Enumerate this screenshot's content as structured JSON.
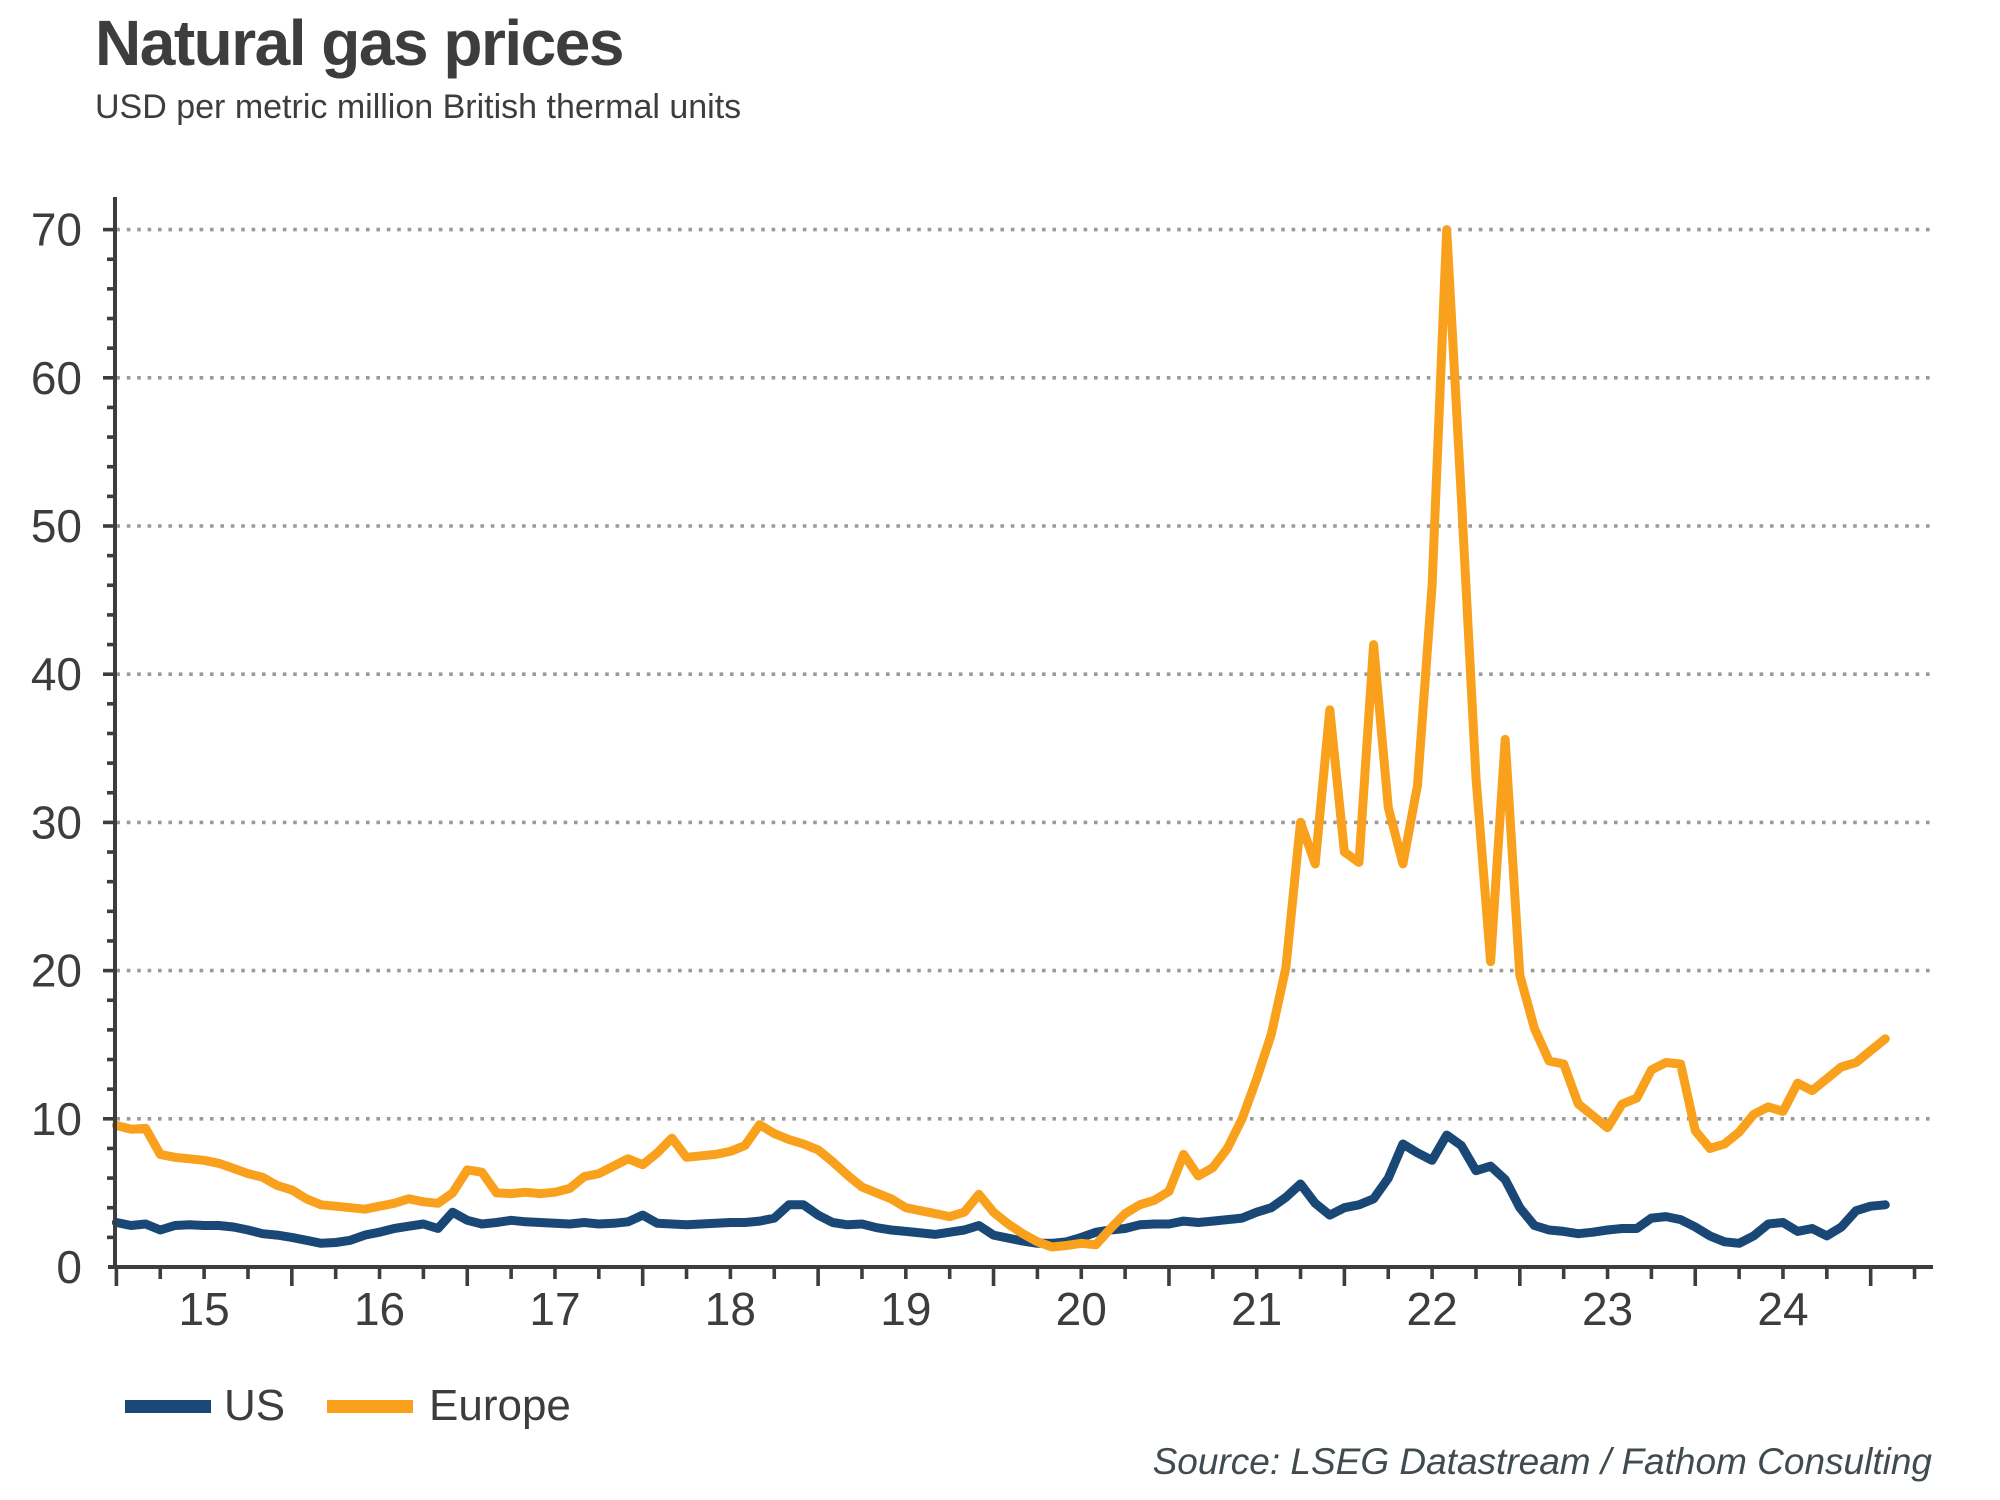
{
  "header": {
    "title": "Natural gas prices",
    "subtitle": "USD per metric million British thermal units"
  },
  "footer": {
    "source": "Source: LSEG Datastream / Fathom Consulting"
  },
  "legend": {
    "items": [
      {
        "label": "US",
        "color": "#1A4876"
      },
      {
        "label": "Europe",
        "color": "#F9A11C"
      }
    ]
  },
  "colors": {
    "axis": "#3d3d3d",
    "gridline": "#9a9a9a",
    "text": "#3d3d3d",
    "us_line": "#1A4876",
    "europe_line": "#F9A11C"
  },
  "chart_data": {
    "type": "line",
    "title": "Natural gas prices",
    "subtitle": "USD per metric million British thermal units",
    "x_unit": "month",
    "x_start": "2015-01",
    "x_end": "2025-02",
    "xticklabels": [
      "15",
      "16",
      "17",
      "18",
      "19",
      "20",
      "21",
      "22",
      "23",
      "24"
    ],
    "yticks": [
      0,
      10,
      20,
      30,
      40,
      50,
      60,
      70
    ],
    "ylim": [
      0,
      72
    ],
    "grid": "horizontal-dotted",
    "legend_position": "bottom-left",
    "series": [
      {
        "name": "US",
        "color": "#1A4876",
        "values": [
          3.0,
          2.8,
          2.9,
          2.5,
          2.8,
          2.85,
          2.8,
          2.8,
          2.7,
          2.5,
          2.25,
          2.15,
          2.0,
          1.8,
          1.6,
          1.65,
          1.8,
          2.15,
          2.35,
          2.6,
          2.75,
          2.9,
          2.6,
          3.7,
          3.15,
          2.9,
          3.0,
          3.15,
          3.05,
          3.0,
          2.95,
          2.9,
          3.0,
          2.9,
          2.95,
          3.05,
          3.5,
          2.95,
          2.9,
          2.85,
          2.9,
          2.95,
          3.0,
          3.0,
          3.1,
          3.3,
          4.2,
          4.2,
          3.5,
          3.0,
          2.85,
          2.9,
          2.65,
          2.5,
          2.4,
          2.3,
          2.2,
          2.35,
          2.5,
          2.8,
          2.15,
          1.95,
          1.75,
          1.6,
          1.6,
          1.7,
          2.0,
          2.35,
          2.5,
          2.6,
          2.85,
          2.9,
          2.9,
          3.1,
          3.0,
          3.1,
          3.2,
          3.3,
          3.7,
          4.0,
          4.7,
          5.6,
          4.3,
          3.5,
          4.0,
          4.2,
          4.6,
          6.0,
          8.3,
          7.7,
          7.2,
          8.9,
          8.2,
          6.5,
          6.8,
          5.9,
          4.0,
          2.8,
          2.5,
          2.4,
          2.25,
          2.35,
          2.5,
          2.6,
          2.6,
          3.3,
          3.4,
          3.2,
          2.7,
          2.1,
          1.7,
          1.6,
          2.1,
          2.9,
          3.0,
          2.4,
          2.6,
          2.1,
          2.7,
          3.8,
          4.1,
          4.2
        ]
      },
      {
        "name": "Europe",
        "color": "#F9A11C",
        "values": [
          9.55,
          9.3,
          9.35,
          7.6,
          7.4,
          7.3,
          7.2,
          7.0,
          6.65,
          6.3,
          6.05,
          5.5,
          5.2,
          4.6,
          4.2,
          4.1,
          4.0,
          3.9,
          4.1,
          4.3,
          4.6,
          4.4,
          4.3,
          5.0,
          6.55,
          6.4,
          5.0,
          4.95,
          5.05,
          4.95,
          5.05,
          5.3,
          6.1,
          6.3,
          6.8,
          7.3,
          6.9,
          7.7,
          8.7,
          7.4,
          7.5,
          7.6,
          7.8,
          8.2,
          9.6,
          9.0,
          8.6,
          8.3,
          7.9,
          7.1,
          6.2,
          5.4,
          5.0,
          4.6,
          4.0,
          3.8,
          3.6,
          3.4,
          3.7,
          4.9,
          3.7,
          2.9,
          2.25,
          1.7,
          1.35,
          1.45,
          1.6,
          1.5,
          2.6,
          3.6,
          4.2,
          4.5,
          5.1,
          7.6,
          6.15,
          6.7,
          8.0,
          10.0,
          12.7,
          15.7,
          20.2,
          30.0,
          27.2,
          37.6,
          28.0,
          27.3,
          42.0,
          31.0,
          27.2,
          32.5,
          46.0,
          70.0,
          52.0,
          33.0,
          20.6,
          35.6,
          19.7,
          16.1,
          13.9,
          13.7,
          11.0,
          10.2,
          9.4,
          11.0,
          11.4,
          13.3,
          13.8,
          13.7,
          9.2,
          8.0,
          8.3,
          9.1,
          10.3,
          10.8,
          10.5,
          12.4,
          11.9,
          12.7,
          13.5,
          13.8,
          14.6,
          15.4
        ]
      }
    ]
  }
}
